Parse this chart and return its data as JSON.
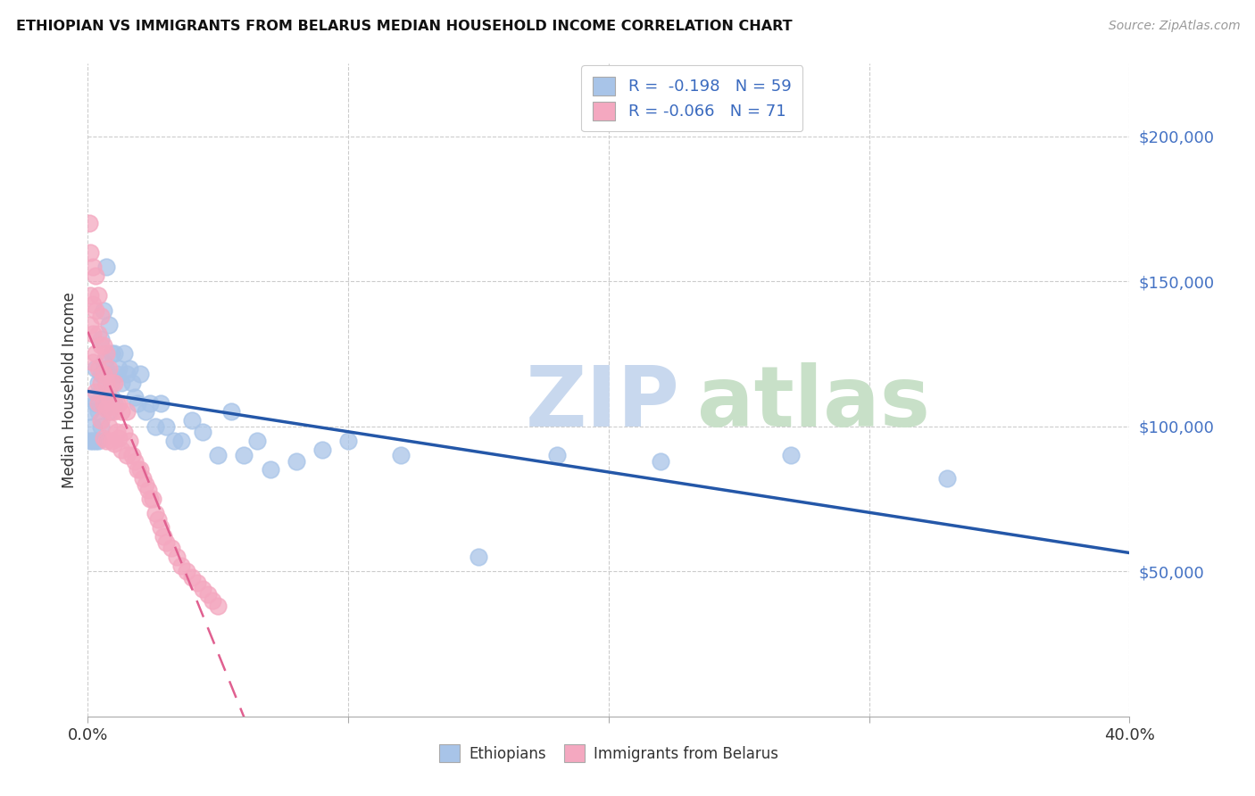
{
  "title": "ETHIOPIAN VS IMMIGRANTS FROM BELARUS MEDIAN HOUSEHOLD INCOME CORRELATION CHART",
  "source": "Source: ZipAtlas.com",
  "ylabel": "Median Household Income",
  "yticks": [
    50000,
    100000,
    150000,
    200000
  ],
  "ytick_labels": [
    "$50,000",
    "$100,000",
    "$150,000",
    "$200,000"
  ],
  "xlim": [
    0.0,
    0.4
  ],
  "ylim": [
    0,
    225000
  ],
  "color_blue": "#a8c4e8",
  "color_pink": "#f4a8c0",
  "color_blue_line": "#2457a8",
  "color_pink_line": "#e06090",
  "ethiopians_x": [
    0.001,
    0.001,
    0.002,
    0.002,
    0.002,
    0.003,
    0.003,
    0.003,
    0.004,
    0.004,
    0.004,
    0.005,
    0.005,
    0.005,
    0.006,
    0.006,
    0.006,
    0.007,
    0.007,
    0.008,
    0.008,
    0.008,
    0.009,
    0.009,
    0.01,
    0.01,
    0.011,
    0.012,
    0.013,
    0.014,
    0.015,
    0.016,
    0.017,
    0.018,
    0.019,
    0.02,
    0.022,
    0.024,
    0.026,
    0.028,
    0.03,
    0.033,
    0.036,
    0.04,
    0.044,
    0.05,
    0.055,
    0.06,
    0.065,
    0.07,
    0.08,
    0.09,
    0.1,
    0.12,
    0.15,
    0.18,
    0.22,
    0.27,
    0.33
  ],
  "ethiopians_y": [
    105000,
    95000,
    110000,
    100000,
    95000,
    120000,
    108000,
    95000,
    115000,
    105000,
    95000,
    130000,
    118000,
    100000,
    140000,
    122000,
    108000,
    155000,
    120000,
    135000,
    118000,
    105000,
    125000,
    110000,
    125000,
    108000,
    118000,
    120000,
    115000,
    125000,
    118000,
    120000,
    115000,
    110000,
    108000,
    118000,
    105000,
    108000,
    100000,
    108000,
    100000,
    95000,
    95000,
    102000,
    98000,
    90000,
    105000,
    90000,
    95000,
    85000,
    88000,
    92000,
    95000,
    90000,
    55000,
    90000,
    88000,
    90000,
    82000
  ],
  "belarus_x": [
    0.0005,
    0.001,
    0.001,
    0.001,
    0.002,
    0.002,
    0.002,
    0.002,
    0.003,
    0.003,
    0.003,
    0.003,
    0.004,
    0.004,
    0.004,
    0.004,
    0.005,
    0.005,
    0.005,
    0.005,
    0.006,
    0.006,
    0.006,
    0.006,
    0.007,
    0.007,
    0.007,
    0.007,
    0.008,
    0.008,
    0.008,
    0.009,
    0.009,
    0.009,
    0.01,
    0.01,
    0.01,
    0.011,
    0.011,
    0.012,
    0.012,
    0.013,
    0.013,
    0.014,
    0.015,
    0.015,
    0.016,
    0.017,
    0.018,
    0.019,
    0.02,
    0.021,
    0.022,
    0.023,
    0.024,
    0.025,
    0.026,
    0.027,
    0.028,
    0.029,
    0.03,
    0.032,
    0.034,
    0.036,
    0.038,
    0.04,
    0.042,
    0.044,
    0.046,
    0.048,
    0.05
  ],
  "belarus_y": [
    170000,
    160000,
    145000,
    135000,
    155000,
    142000,
    132000,
    122000,
    152000,
    140000,
    125000,
    112000,
    145000,
    132000,
    120000,
    108000,
    138000,
    128000,
    115000,
    102000,
    128000,
    118000,
    108000,
    96000,
    125000,
    115000,
    106000,
    95000,
    120000,
    110000,
    100000,
    115000,
    105000,
    95000,
    115000,
    105000,
    94000,
    108000,
    98000,
    108000,
    96000,
    105000,
    92000,
    98000,
    105000,
    90000,
    95000,
    90000,
    88000,
    85000,
    85000,
    82000,
    80000,
    78000,
    75000,
    75000,
    70000,
    68000,
    65000,
    62000,
    60000,
    58000,
    55000,
    52000,
    50000,
    48000,
    46000,
    44000,
    42000,
    40000,
    38000
  ]
}
